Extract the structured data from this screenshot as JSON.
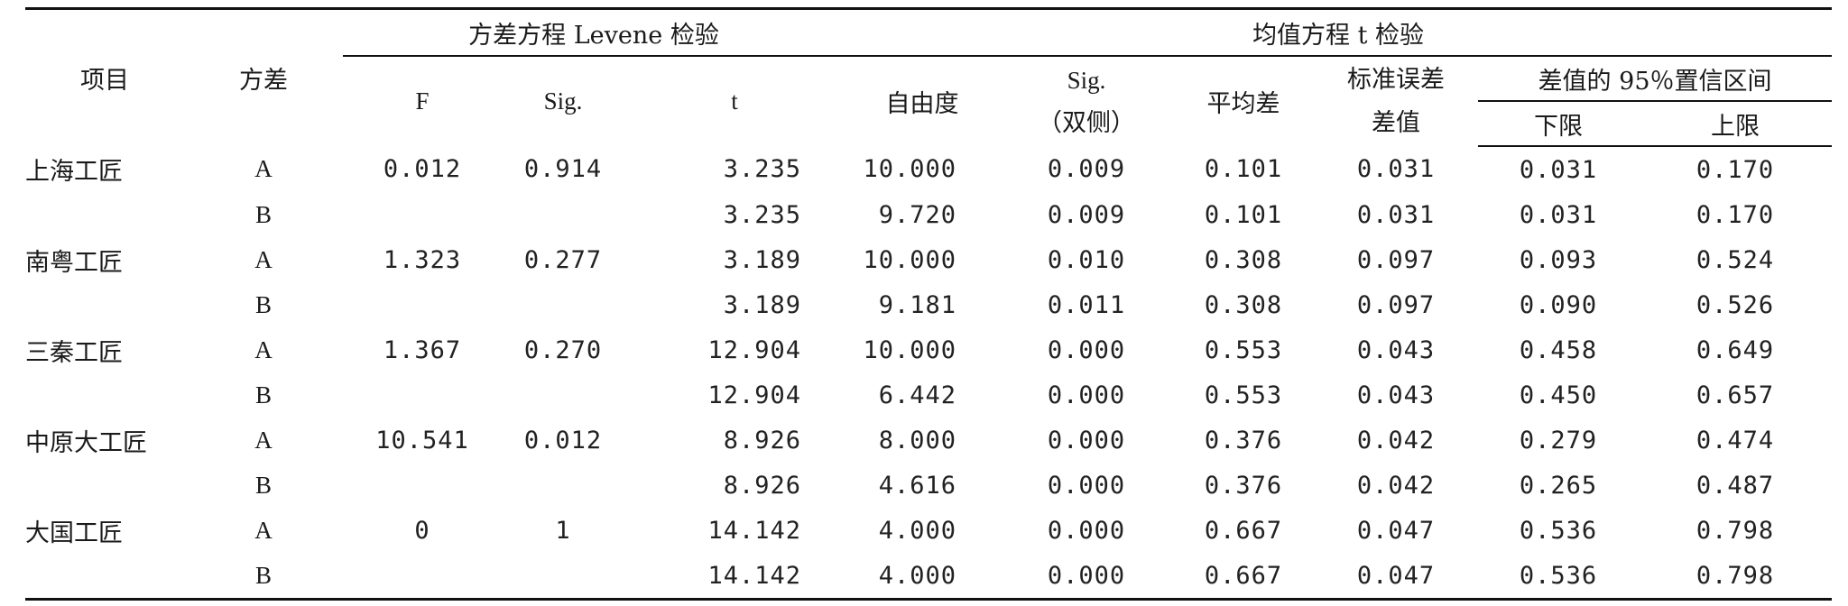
{
  "header": {
    "item": "项目",
    "variance": "方差",
    "levene_group": "方差方程 Levene 检验",
    "ttest_group": "均值方程 t 检验",
    "F": "F",
    "sig": "Sig.",
    "t": "t",
    "df": "自由度",
    "sig2_line1": "Sig.",
    "sig2_line2": "（双侧）",
    "mean_diff": "平均差",
    "se_line1": "标准误差",
    "se_line2": "差值",
    "ci_group": "差值的 95％置信区间",
    "lower": "下限",
    "upper": "上限"
  },
  "rows": [
    {
      "item": "上海工匠",
      "var": "A",
      "F": "0.012",
      "sig": "0.914",
      "t": "3.235",
      "df": "10.000",
      "sig2": "0.009",
      "md": "0.101",
      "se": "0.031",
      "lo": "0.031",
      "hi": "0.170"
    },
    {
      "item": "",
      "var": "B",
      "F": "",
      "sig": "",
      "t": "3.235",
      "df": "9.720",
      "sig2": "0.009",
      "md": "0.101",
      "se": "0.031",
      "lo": "0.031",
      "hi": "0.170"
    },
    {
      "item": "南粤工匠",
      "var": "A",
      "F": "1.323",
      "sig": "0.277",
      "t": "3.189",
      "df": "10.000",
      "sig2": "0.010",
      "md": "0.308",
      "se": "0.097",
      "lo": "0.093",
      "hi": "0.524"
    },
    {
      "item": "",
      "var": "B",
      "F": "",
      "sig": "",
      "t": "3.189",
      "df": "9.181",
      "sig2": "0.011",
      "md": "0.308",
      "se": "0.097",
      "lo": "0.090",
      "hi": "0.526"
    },
    {
      "item": "三秦工匠",
      "var": "A",
      "F": "1.367",
      "sig": "0.270",
      "t": "12.904",
      "df": "10.000",
      "sig2": "0.000",
      "md": "0.553",
      "se": "0.043",
      "lo": "0.458",
      "hi": "0.649"
    },
    {
      "item": "",
      "var": "B",
      "F": "",
      "sig": "",
      "t": "12.904",
      "df": "6.442",
      "sig2": "0.000",
      "md": "0.553",
      "se": "0.043",
      "lo": "0.450",
      "hi": "0.657"
    },
    {
      "item": "中原大工匠",
      "var": "A",
      "F": "10.541",
      "sig": "0.012",
      "t": "8.926",
      "df": "8.000",
      "sig2": "0.000",
      "md": "0.376",
      "se": "0.042",
      "lo": "0.279",
      "hi": "0.474"
    },
    {
      "item": "",
      "var": "B",
      "F": "",
      "sig": "",
      "t": "8.926",
      "df": "4.616",
      "sig2": "0.000",
      "md": "0.376",
      "se": "0.042",
      "lo": "0.265",
      "hi": "0.487"
    },
    {
      "item": "大国工匠",
      "var": "A",
      "F": "0",
      "sig": "1",
      "t": "14.142",
      "df": "4.000",
      "sig2": "0.000",
      "md": "0.667",
      "se": "0.047",
      "lo": "0.536",
      "hi": "0.798"
    },
    {
      "item": "",
      "var": "B",
      "F": "",
      "sig": "",
      "t": "14.142",
      "df": "4.000",
      "sig2": "0.000",
      "md": "0.667",
      "se": "0.047",
      "lo": "0.536",
      "hi": "0.798"
    }
  ]
}
